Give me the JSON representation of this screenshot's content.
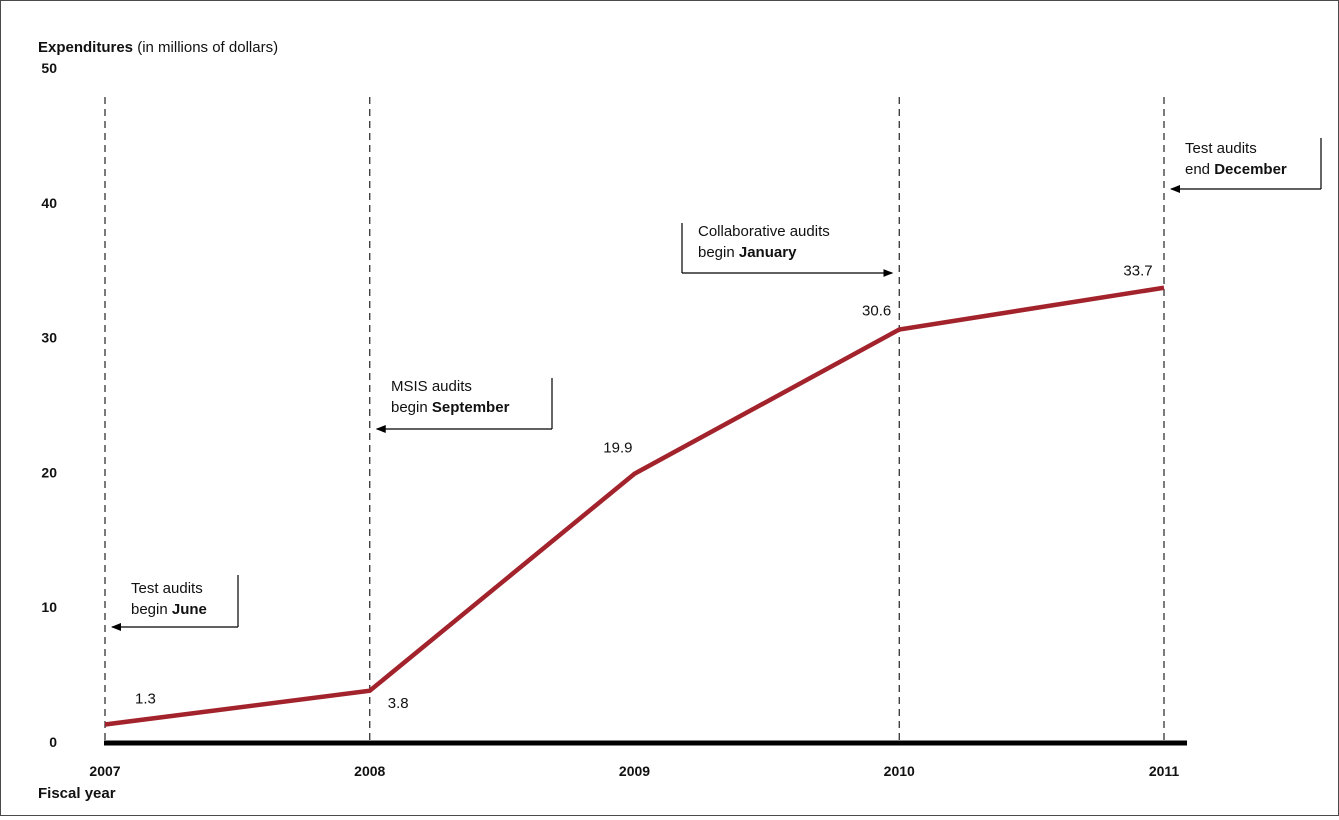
{
  "chart_data": {
    "type": "line",
    "ylabel_bold": "Expenditures",
    "ylabel_rest": " (in millions of dollars)",
    "xlabel": "Fiscal year",
    "ylim": [
      0,
      50
    ],
    "yticks": [
      "0",
      "10",
      "20",
      "30",
      "40",
      "50"
    ],
    "x": [
      "2007",
      "2008",
      "2009",
      "2010",
      "2011"
    ],
    "series": [
      {
        "values": [
          1.3,
          3.8,
          19.9,
          30.6,
          33.7
        ],
        "labels": [
          "1.3",
          "3.8",
          "19.9",
          "30.6",
          "33.7"
        ]
      }
    ],
    "dashed_lines_at": [
      "2007",
      "2008",
      "2010",
      "2011"
    ],
    "grid": false,
    "colors": {
      "line": "#a3232c",
      "axis": "#000000"
    },
    "annotations": [
      {
        "line1": "Test audits",
        "line2_plain": "begin ",
        "line2_bold": "June",
        "points_to": "2007",
        "arrow": "left"
      },
      {
        "line1": "MSIS audits",
        "line2_plain": "begin ",
        "line2_bold": "September",
        "points_to": "2008",
        "arrow": "left"
      },
      {
        "line1": "Collaborative audits",
        "line2_plain": "begin ",
        "line2_bold": "January",
        "points_to": "2010",
        "arrow": "right"
      },
      {
        "line1": "Test audits",
        "line2_plain": "end ",
        "line2_bold": "December",
        "points_to": "2011",
        "arrow": "left"
      }
    ]
  }
}
